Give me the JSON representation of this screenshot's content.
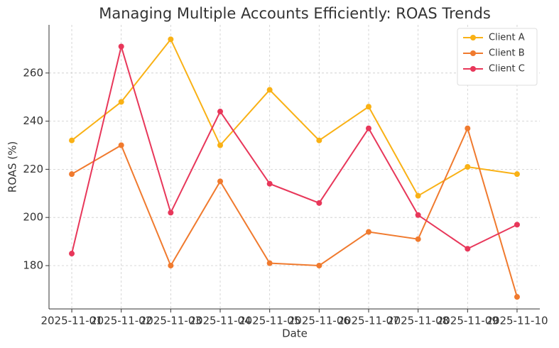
{
  "chart_data": {
    "type": "line",
    "title": "Managing Multiple Accounts Efficiently: ROAS Trends",
    "x_label": "Date",
    "y_label": "ROAS (%)",
    "categories": [
      "2025-11-01",
      "2025-11-02",
      "2025-11-03",
      "2025-11-04",
      "2025-11-05",
      "2025-11-06",
      "2025-11-07",
      "2025-11-08",
      "2025-11-09",
      "2025-11-10"
    ],
    "series": [
      {
        "name": "Client A",
        "color": "#f9b115",
        "values": [
          232,
          248,
          274,
          230,
          253,
          232,
          246,
          209,
          221,
          218
        ]
      },
      {
        "name": "Client B",
        "color": "#f07a2e",
        "values": [
          218,
          230,
          180,
          215,
          181,
          180,
          194,
          191,
          237,
          167
        ]
      },
      {
        "name": "Client C",
        "color": "#e8375a",
        "values": [
          185,
          271,
          202,
          244,
          214,
          206,
          237,
          201,
          187,
          197
        ]
      }
    ],
    "ylim": [
      162,
      280
    ],
    "yticks": [
      180,
      200,
      220,
      240,
      260
    ],
    "grid": true,
    "legend": "upper right"
  }
}
